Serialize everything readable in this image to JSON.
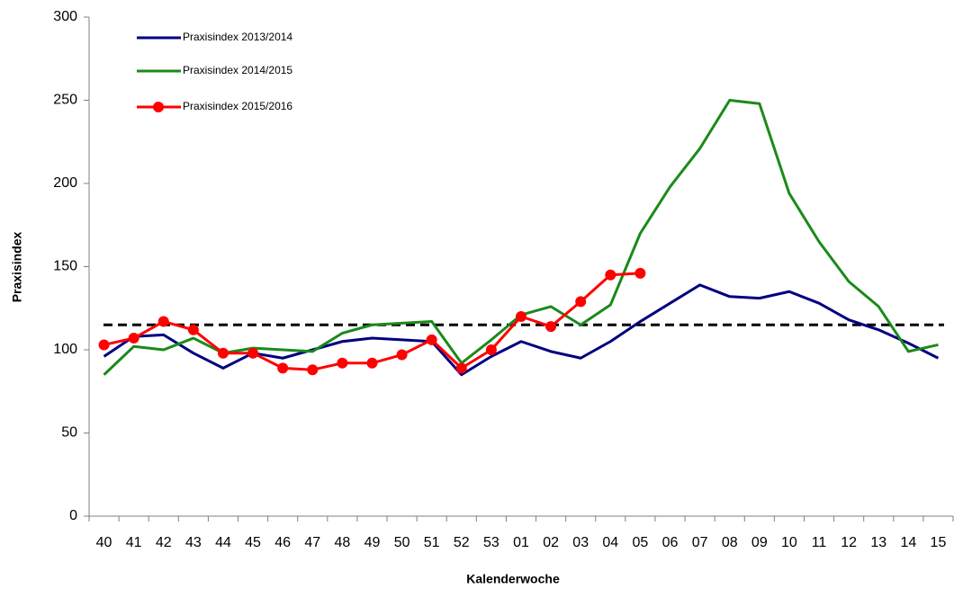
{
  "chart_data": {
    "type": "line",
    "y_label": "Praxisindex",
    "x_label": "Kalenderwoche",
    "categories": [
      "40",
      "41",
      "42",
      "43",
      "44",
      "45",
      "46",
      "47",
      "48",
      "49",
      "50",
      "51",
      "52",
      "53",
      "01",
      "02",
      "03",
      "04",
      "05",
      "06",
      "07",
      "08",
      "09",
      "10",
      "11",
      "12",
      "13",
      "14",
      "15"
    ],
    "series": [
      {
        "name": "Praxisindex 2013/2014",
        "color": "#000080",
        "marker": false,
        "values": [
          96,
          108,
          109,
          98,
          89,
          98,
          95,
          100,
          105,
          107,
          106,
          105,
          85,
          96,
          105,
          99,
          95,
          105,
          117,
          128,
          139,
          132,
          131,
          135,
          128,
          118,
          112,
          104,
          95
        ]
      },
      {
        "name": "Praxisindex 2014/2015",
        "color": "#1a8a1a",
        "marker": false,
        "values": [
          85,
          102,
          100,
          107,
          98,
          101,
          100,
          99,
          110,
          115,
          116,
          117,
          92,
          106,
          121,
          126,
          115,
          127,
          170,
          198,
          221,
          250,
          248,
          194,
          165,
          141,
          126,
          99,
          103
        ]
      },
      {
        "name": "Praxisindex 2015/2016",
        "color": "#ff0000",
        "marker": true,
        "values": [
          103,
          107,
          117,
          112,
          98,
          98,
          89,
          88,
          92,
          92,
          97,
          106,
          89,
          100,
          120,
          114,
          129,
          145,
          146,
          null,
          null,
          null,
          null,
          null,
          null,
          null,
          null,
          null,
          null
        ]
      }
    ],
    "reference_line": 115,
    "ylim": [
      0,
      300
    ],
    "yticks": [
      0,
      50,
      100,
      150,
      200,
      250,
      300
    ]
  }
}
